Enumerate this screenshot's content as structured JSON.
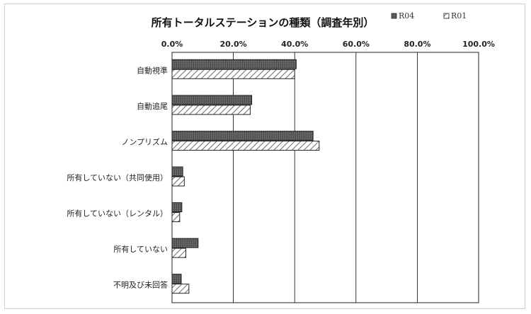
{
  "chart_data": {
    "type": "bar",
    "orientation": "horizontal",
    "title": "所有トータルステーションの種類（調査年別）",
    "categories": [
      "自動視準",
      "自動追尾",
      "ノンプリズム",
      "所有していない（共同使用）",
      "所有していない（レンタル）",
      "所有していない",
      "不明及び未回答"
    ],
    "series": [
      {
        "name": "R04",
        "values": [
          40.5,
          26.0,
          46.0,
          3.5,
          3.2,
          8.5,
          3.0
        ]
      },
      {
        "name": "R01",
        "values": [
          40.0,
          25.5,
          48.0,
          4.0,
          2.5,
          4.5,
          5.5
        ]
      }
    ],
    "xlim": [
      0,
      100
    ],
    "x_ticks": [
      "0.0%",
      "20.0%",
      "40.0%",
      "60.0%",
      "80.0%",
      "100.0%"
    ],
    "x_axis_position": "top",
    "grid": true,
    "legend_position": "top-right",
    "colors": {
      "R04": "#595959",
      "R01": "#ffffff",
      "hatch": "#444444",
      "border": "#222222",
      "grid": "#000000"
    }
  }
}
